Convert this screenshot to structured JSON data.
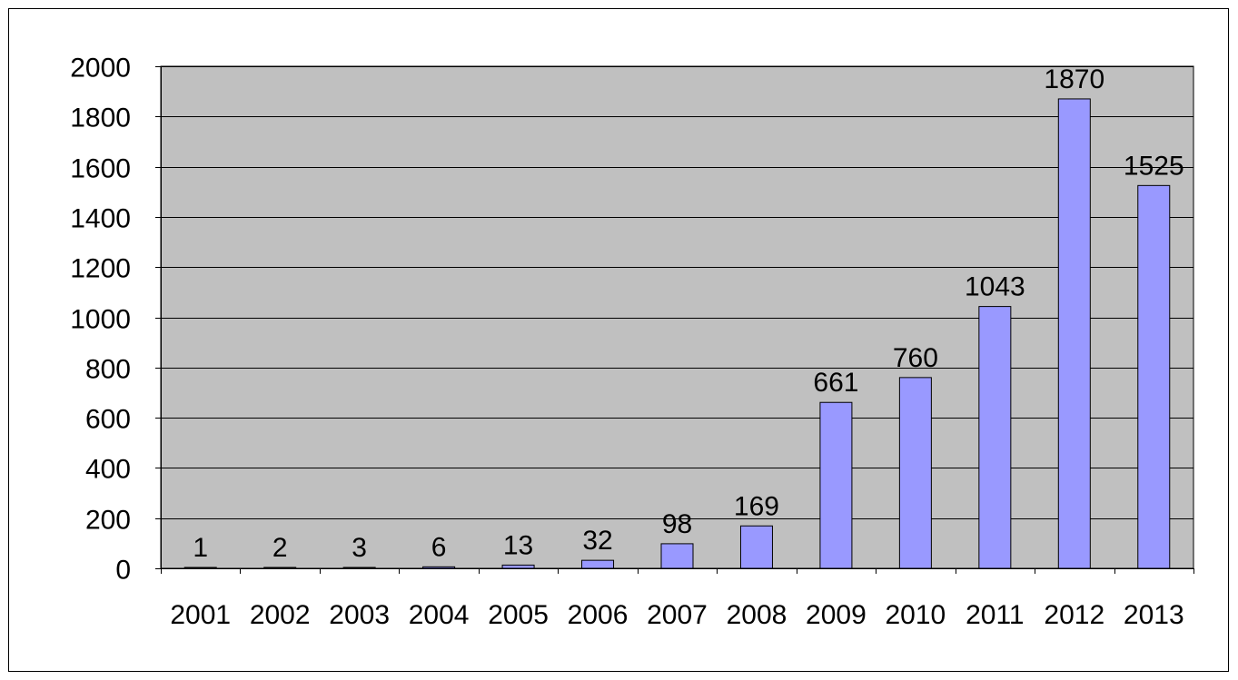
{
  "chart_data": {
    "type": "bar",
    "title": "",
    "xlabel": "",
    "ylabel": "",
    "categories": [
      "2001",
      "2002",
      "2003",
      "2004",
      "2005",
      "2006",
      "2007",
      "2008",
      "2009",
      "2010",
      "2011",
      "2012",
      "2013"
    ],
    "values": [
      1,
      2,
      3,
      6,
      13,
      32,
      98,
      169,
      661,
      760,
      1043,
      1870,
      1525
    ],
    "data_labels": [
      "1",
      "2",
      "3",
      "6",
      "13",
      "32",
      "98",
      "169",
      "661",
      "760",
      "1043",
      "1870",
      "1525"
    ],
    "ylim": [
      0,
      2000
    ],
    "yticks": [
      0,
      200,
      400,
      600,
      800,
      1000,
      1200,
      1400,
      1600,
      1800,
      2000
    ],
    "ytick_labels": [
      "0",
      "200",
      "400",
      "600",
      "800",
      "1000",
      "1200",
      "1400",
      "1600",
      "1800",
      "2000"
    ],
    "grid": true,
    "legend": "none",
    "colors": {
      "bar_fill": "#9999ff",
      "bar_stroke": "#000000",
      "plot_background": "#c0c0c0",
      "gridline": "#000000"
    }
  }
}
